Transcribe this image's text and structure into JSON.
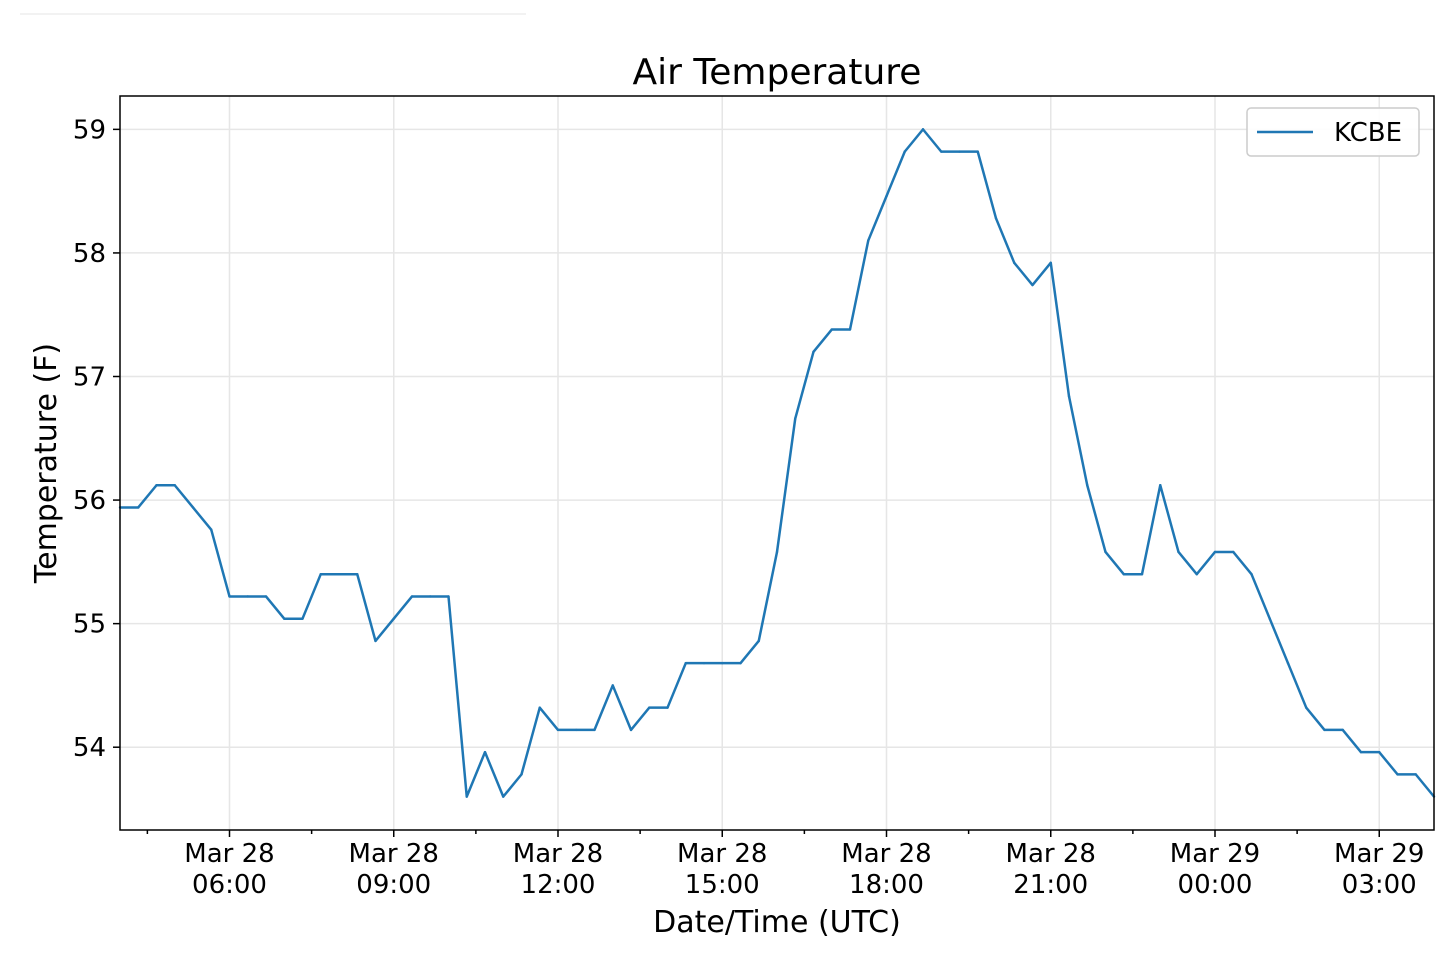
{
  "chart_data": {
    "type": "line",
    "title": "Air Temperature",
    "xlabel": "Date/Time (UTC)",
    "ylabel": "Temperature (F)",
    "ylim": [
      53.33,
      59.27
    ],
    "xlim": [
      "2019-03-28T04:00",
      "2019-03-29T04:00"
    ],
    "yticks": [
      54,
      55,
      56,
      57,
      58,
      59
    ],
    "xticks": [
      {
        "x": "2019-03-28T06:00",
        "date": "Mar 28",
        "time": "06:00"
      },
      {
        "x": "2019-03-28T09:00",
        "date": "Mar 28",
        "time": "09:00"
      },
      {
        "x": "2019-03-28T12:00",
        "date": "Mar 28",
        "time": "12:00"
      },
      {
        "x": "2019-03-28T15:00",
        "date": "Mar 28",
        "time": "15:00"
      },
      {
        "x": "2019-03-28T18:00",
        "date": "Mar 28",
        "time": "18:00"
      },
      {
        "x": "2019-03-28T21:00",
        "date": "Mar 28",
        "time": "21:00"
      },
      {
        "x": "2019-03-29T00:00",
        "date": "Mar 29",
        "time": "00:00"
      },
      {
        "x": "2019-03-29T03:00",
        "date": "Mar 29",
        "time": "03:00"
      }
    ],
    "grid": true,
    "legend": "top-right",
    "series": [
      {
        "name": "KCBE",
        "color": "#1f77b4",
        "points": [
          [
            "2019-03-28T04:00",
            55.94
          ],
          [
            "2019-03-28T04:20",
            55.94
          ],
          [
            "2019-03-28T04:40",
            56.12
          ],
          [
            "2019-03-28T05:00",
            56.12
          ],
          [
            "2019-03-28T05:20",
            55.94
          ],
          [
            "2019-03-28T05:40",
            55.76
          ],
          [
            "2019-03-28T06:00",
            55.22
          ],
          [
            "2019-03-28T06:20",
            55.22
          ],
          [
            "2019-03-28T06:40",
            55.22
          ],
          [
            "2019-03-28T07:00",
            55.04
          ],
          [
            "2019-03-28T07:20",
            55.04
          ],
          [
            "2019-03-28T07:40",
            55.4
          ],
          [
            "2019-03-28T08:00",
            55.4
          ],
          [
            "2019-03-28T08:20",
            55.4
          ],
          [
            "2019-03-28T08:40",
            54.86
          ],
          [
            "2019-03-28T09:00",
            55.04
          ],
          [
            "2019-03-28T09:20",
            55.22
          ],
          [
            "2019-03-28T09:40",
            55.22
          ],
          [
            "2019-03-28T10:00",
            55.22
          ],
          [
            "2019-03-28T10:20",
            53.6
          ],
          [
            "2019-03-28T10:40",
            53.96
          ],
          [
            "2019-03-28T11:00",
            53.6
          ],
          [
            "2019-03-28T11:20",
            53.78
          ],
          [
            "2019-03-28T11:40",
            54.32
          ],
          [
            "2019-03-28T12:00",
            54.14
          ],
          [
            "2019-03-28T12:20",
            54.14
          ],
          [
            "2019-03-28T12:40",
            54.14
          ],
          [
            "2019-03-28T13:00",
            54.5
          ],
          [
            "2019-03-28T13:20",
            54.14
          ],
          [
            "2019-03-28T13:40",
            54.32
          ],
          [
            "2019-03-28T14:00",
            54.32
          ],
          [
            "2019-03-28T14:20",
            54.68
          ],
          [
            "2019-03-28T14:40",
            54.68
          ],
          [
            "2019-03-28T15:00",
            54.68
          ],
          [
            "2019-03-28T15:20",
            54.68
          ],
          [
            "2019-03-28T15:40",
            54.86
          ],
          [
            "2019-03-28T16:00",
            55.58
          ],
          [
            "2019-03-28T16:20",
            56.66
          ],
          [
            "2019-03-28T16:40",
            57.2
          ],
          [
            "2019-03-28T17:00",
            57.38
          ],
          [
            "2019-03-28T17:20",
            57.38
          ],
          [
            "2019-03-28T17:40",
            58.1
          ],
          [
            "2019-03-28T18:00",
            58.46
          ],
          [
            "2019-03-28T18:20",
            58.82
          ],
          [
            "2019-03-28T18:40",
            59.0
          ],
          [
            "2019-03-28T19:00",
            58.82
          ],
          [
            "2019-03-28T19:20",
            58.82
          ],
          [
            "2019-03-28T19:40",
            58.82
          ],
          [
            "2019-03-28T20:00",
            58.28
          ],
          [
            "2019-03-28T20:20",
            57.92
          ],
          [
            "2019-03-28T20:40",
            57.74
          ],
          [
            "2019-03-28T21:00",
            57.92
          ],
          [
            "2019-03-28T21:20",
            56.84
          ],
          [
            "2019-03-28T21:40",
            56.12
          ],
          [
            "2019-03-28T22:00",
            55.58
          ],
          [
            "2019-03-28T22:20",
            55.4
          ],
          [
            "2019-03-28T22:40",
            55.4
          ],
          [
            "2019-03-28T23:00",
            56.12
          ],
          [
            "2019-03-28T23:20",
            55.58
          ],
          [
            "2019-03-28T23:40",
            55.4
          ],
          [
            "2019-03-29T00:00",
            55.58
          ],
          [
            "2019-03-29T00:20",
            55.58
          ],
          [
            "2019-03-29T00:40",
            55.4
          ],
          [
            "2019-03-29T01:00",
            55.04
          ],
          [
            "2019-03-29T01:20",
            54.68
          ],
          [
            "2019-03-29T01:40",
            54.32
          ],
          [
            "2019-03-29T02:00",
            54.14
          ],
          [
            "2019-03-29T02:20",
            54.14
          ],
          [
            "2019-03-29T02:40",
            53.96
          ],
          [
            "2019-03-29T03:00",
            53.96
          ],
          [
            "2019-03-29T03:20",
            53.78
          ],
          [
            "2019-03-29T03:40",
            53.78
          ],
          [
            "2019-03-29T04:00",
            53.6
          ]
        ]
      }
    ]
  }
}
